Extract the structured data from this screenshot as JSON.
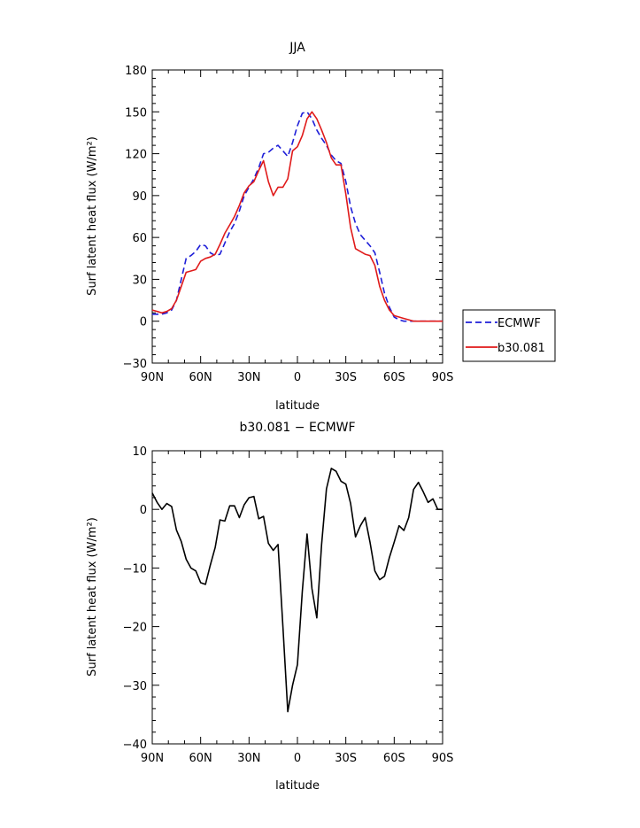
{
  "chart_data": [
    {
      "type": "line",
      "title": "JJA",
      "xlabel": "latitude",
      "ylabel": "Surf latent heat flux (W/m²)",
      "xlim": [
        90,
        -90
      ],
      "ylim": [
        -30,
        180
      ],
      "xticks": [
        90,
        60,
        30,
        0,
        -30,
        -60,
        -90
      ],
      "xtick_labels": [
        "90N",
        "60N",
        "30N",
        "0",
        "30S",
        "60S",
        "90S"
      ],
      "yticks": [
        -30,
        0,
        30,
        60,
        90,
        120,
        150,
        180
      ],
      "ytick_labels": [
        "−30",
        "0",
        "30",
        "60",
        "90",
        "120",
        "150",
        "180"
      ],
      "legend_position": "outside-right",
      "series": [
        {
          "name": "ECMWF",
          "color": "#1f1fd8",
          "dash": "dashed",
          "x": [
            90,
            87,
            84,
            81,
            78,
            75,
            72,
            69,
            66,
            63,
            60,
            57,
            54,
            51,
            48,
            45,
            42,
            39,
            36,
            33,
            30,
            27,
            24,
            21,
            18,
            15,
            12,
            9,
            6,
            3,
            0,
            -3,
            -6,
            -9,
            -12,
            -15,
            -18,
            -21,
            -24,
            -27,
            -30,
            -33,
            -36,
            -39,
            -42,
            -45,
            -48,
            -51,
            -54,
            -57,
            -60,
            -63,
            -66,
            -69,
            -72,
            -75,
            -78,
            -81,
            -84,
            -87,
            -90
          ],
          "y": [
            5,
            5,
            5,
            6,
            8,
            15,
            30,
            45,
            47,
            50,
            55,
            54,
            49,
            47,
            48,
            56,
            64,
            70,
            79,
            90,
            96,
            102,
            110,
            120,
            121,
            124,
            126,
            122,
            118,
            128,
            140,
            149,
            150,
            145,
            137,
            131,
            126,
            119,
            115,
            113,
            100,
            82,
            70,
            62,
            58,
            54,
            49,
            35,
            20,
            10,
            3,
            1,
            0,
            0,
            0,
            0,
            0,
            0,
            0,
            0,
            0
          ]
        },
        {
          "name": "b30.081",
          "color": "#e01a1a",
          "dash": "solid",
          "x": [
            90,
            87,
            84,
            81,
            78,
            75,
            72,
            69,
            66,
            63,
            60,
            57,
            54,
            51,
            48,
            45,
            42,
            39,
            36,
            33,
            30,
            27,
            24,
            21,
            18,
            15,
            12,
            9,
            6,
            3,
            0,
            -3,
            -6,
            -9,
            -12,
            -15,
            -18,
            -21,
            -24,
            -27,
            -30,
            -33,
            -36,
            -39,
            -42,
            -45,
            -48,
            -51,
            -54,
            -57,
            -60,
            -63,
            -66,
            -69,
            -72,
            -75,
            -78,
            -81,
            -84,
            -87,
            -90
          ],
          "y": [
            8,
            7,
            6,
            7,
            9,
            15,
            25,
            35,
            36,
            37,
            43,
            45,
            46,
            48,
            55,
            63,
            69,
            75,
            83,
            92,
            97,
            100,
            108,
            115,
            100,
            90,
            96,
            96,
            102,
            122,
            125,
            133,
            145,
            150,
            145,
            137,
            128,
            117,
            112,
            112,
            91,
            67,
            52,
            50,
            48,
            47,
            40,
            25,
            15,
            8,
            4,
            3,
            2,
            1,
            0,
            0,
            0,
            0,
            0,
            0,
            0
          ]
        }
      ]
    },
    {
      "type": "line",
      "title": "b30.081 − ECMWF",
      "xlabel": "latitude",
      "ylabel": "Surf latent heat flux (W/m²)",
      "xlim": [
        90,
        -90
      ],
      "ylim": [
        -40,
        10
      ],
      "xticks": [
        90,
        60,
        30,
        0,
        -30,
        -60,
        -90
      ],
      "xtick_labels": [
        "90N",
        "60N",
        "30N",
        "0",
        "30S",
        "60S",
        "90S"
      ],
      "yticks": [
        -40,
        -30,
        -20,
        -10,
        0,
        10
      ],
      "ytick_labels": [
        "−40",
        "−30",
        "−20",
        "−10",
        "0",
        "10"
      ],
      "series": [
        {
          "color": "#000000",
          "dash": "solid",
          "x": [
            90,
            87,
            84,
            81,
            78,
            75,
            72,
            69,
            66,
            63,
            60,
            57,
            54,
            51,
            48,
            45,
            42,
            39,
            36,
            33,
            30,
            27,
            24,
            21,
            18,
            15,
            12,
            9,
            6,
            3,
            0,
            -3,
            -6,
            -9,
            -12,
            -15,
            -18,
            -21,
            -24,
            -27,
            -30,
            -33,
            -36,
            -39,
            -42,
            -45,
            -48,
            -51,
            -54,
            -57,
            -60,
            -63,
            -66,
            -69,
            -72,
            -75,
            -78,
            -81,
            -84,
            -87,
            -90
          ],
          "y": [
            2.8,
            1.2,
            0,
            1,
            0.5,
            -3.5,
            -5.5,
            -8.5,
            -10,
            -10.5,
            -12.5,
            -12.8,
            -9.5,
            -6.5,
            -1.8,
            -2,
            0.6,
            0.6,
            -1.4,
            0.8,
            2,
            2.2,
            -1.6,
            -1.2,
            -5.8,
            -7,
            -6,
            -20,
            -34.5,
            -30,
            -26.5,
            -14,
            -4.2,
            -13.5,
            -18.5,
            -6,
            3.5,
            7,
            6.5,
            4.8,
            4.3,
            1,
            -4.7,
            -2.8,
            -1.4,
            -5.6,
            -10.5,
            -12,
            -11.4,
            -8.2,
            -5.6,
            -2.8,
            -3.6,
            -1.4,
            3.4,
            4.6,
            3,
            1.2,
            1.8,
            0,
            0
          ]
        }
      ]
    }
  ]
}
